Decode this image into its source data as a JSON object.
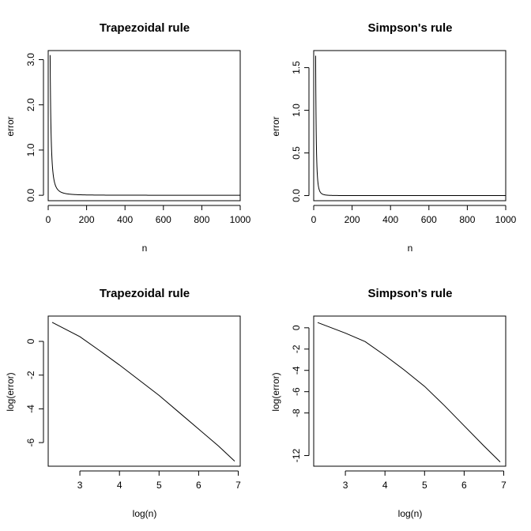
{
  "chart_data": [
    {
      "type": "line",
      "title": "Trapezoidal rule",
      "xlabel": "n",
      "ylabel": "error",
      "xlim": [
        0,
        1000
      ],
      "ylim": [
        -0.12,
        3.2
      ],
      "x_ticks": [
        0,
        200,
        400,
        600,
        800,
        1000
      ],
      "y_ticks": [
        0.0,
        1.0,
        2.0,
        3.0
      ],
      "y_tick_labels": [
        "0.0",
        "1.0",
        "2.0",
        "3.0"
      ],
      "series": [
        {
          "name": "error",
          "formula": "a/n^2",
          "a": 310,
          "x_start": 10,
          "x_end": 1000
        }
      ]
    },
    {
      "type": "line",
      "title": "Simpson's rule",
      "xlabel": "n",
      "ylabel": "error",
      "xlim": [
        0,
        1000
      ],
      "ylim": [
        -0.06,
        1.7
      ],
      "x_ticks": [
        0,
        200,
        400,
        600,
        800,
        1000
      ],
      "y_ticks": [
        0.0,
        0.5,
        1.0,
        1.5
      ],
      "y_tick_labels": [
        "0.0",
        "0.5",
        "1.0",
        "1.5"
      ],
      "series": [
        {
          "name": "error",
          "formula": "a/n^3",
          "a": 1640,
          "x_start": 10,
          "x_end": 1000
        }
      ]
    },
    {
      "type": "line",
      "title": "Trapezoidal rule",
      "xlabel": "log(n)",
      "ylabel": "log(error)",
      "xlim": [
        2.2,
        7.05
      ],
      "ylim": [
        -7.4,
        1.5
      ],
      "x_ticks": [
        3,
        4,
        5,
        6,
        7
      ],
      "y_ticks": [
        0,
        -2,
        -4,
        -6
      ],
      "y_tick_labels": [
        "0",
        "-2",
        "-4",
        "-6"
      ],
      "series": [
        {
          "name": "log(error)",
          "x": [
            2.3,
            3.0,
            3.5,
            4.0,
            4.5,
            5.0,
            5.5,
            6.0,
            6.5,
            6.91
          ],
          "y": [
            1.13,
            0.28,
            -0.55,
            -1.4,
            -2.3,
            -3.2,
            -4.2,
            -5.2,
            -6.2,
            -7.1
          ]
        }
      ]
    },
    {
      "type": "line",
      "title": "Simpson's rule",
      "xlabel": "log(n)",
      "ylabel": "log(error)",
      "xlim": [
        2.2,
        7.05
      ],
      "ylim": [
        -13.0,
        1.1
      ],
      "x_ticks": [
        3,
        4,
        5,
        6,
        7
      ],
      "y_ticks": [
        0,
        -2,
        -4,
        -6,
        -8,
        -12
      ],
      "y_tick_labels": [
        "0",
        "-2",
        "-4",
        "-6",
        "-8",
        "-12"
      ],
      "series": [
        {
          "name": "log(error)",
          "x": [
            2.3,
            3.0,
            3.5,
            4.0,
            4.5,
            5.0,
            5.5,
            6.0,
            6.5,
            6.91
          ],
          "y": [
            0.49,
            -0.5,
            -1.3,
            -2.6,
            -4.0,
            -5.5,
            -7.3,
            -9.2,
            -11.1,
            -12.6
          ]
        }
      ]
    }
  ]
}
